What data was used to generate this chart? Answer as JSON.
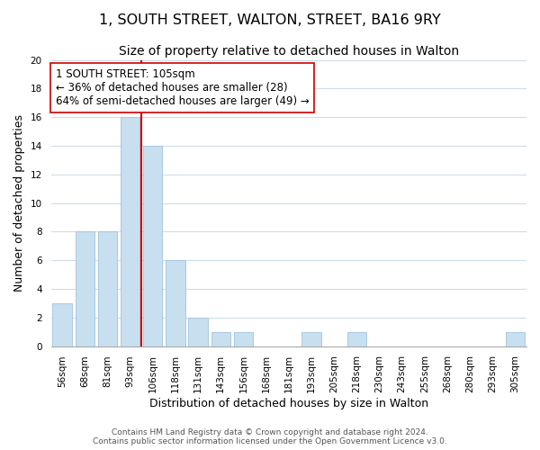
{
  "title": "1, SOUTH STREET, WALTON, STREET, BA16 9RY",
  "subtitle": "Size of property relative to detached houses in Walton",
  "xlabel": "Distribution of detached houses by size in Walton",
  "ylabel": "Number of detached properties",
  "bar_labels": [
    "56sqm",
    "68sqm",
    "81sqm",
    "93sqm",
    "106sqm",
    "118sqm",
    "131sqm",
    "143sqm",
    "156sqm",
    "168sqm",
    "181sqm",
    "193sqm",
    "205sqm",
    "218sqm",
    "230sqm",
    "243sqm",
    "255sqm",
    "268sqm",
    "280sqm",
    "293sqm",
    "305sqm"
  ],
  "bar_values": [
    3,
    8,
    8,
    16,
    14,
    6,
    2,
    1,
    1,
    0,
    0,
    1,
    0,
    1,
    0,
    0,
    0,
    0,
    0,
    0,
    1
  ],
  "bar_color": "#c8dff0",
  "bar_edge_color": "#a0c4e0",
  "subject_line_color": "#cc0000",
  "annotation_box_edge": "#cc0000",
  "annotation_box_face": "#ffffff",
  "ylim": [
    0,
    20
  ],
  "yticks": [
    0,
    2,
    4,
    6,
    8,
    10,
    12,
    14,
    16,
    18,
    20
  ],
  "footnote1": "Contains HM Land Registry data © Crown copyright and database right 2024.",
  "footnote2": "Contains public sector information licensed under the Open Government Licence v3.0.",
  "background_color": "#ffffff",
  "grid_color": "#ccdde8",
  "title_fontsize": 11.5,
  "subtitle_fontsize": 10,
  "axis_label_fontsize": 9,
  "tick_fontsize": 7.5,
  "annotation_fontsize": 8.5,
  "footnote_fontsize": 6.5
}
